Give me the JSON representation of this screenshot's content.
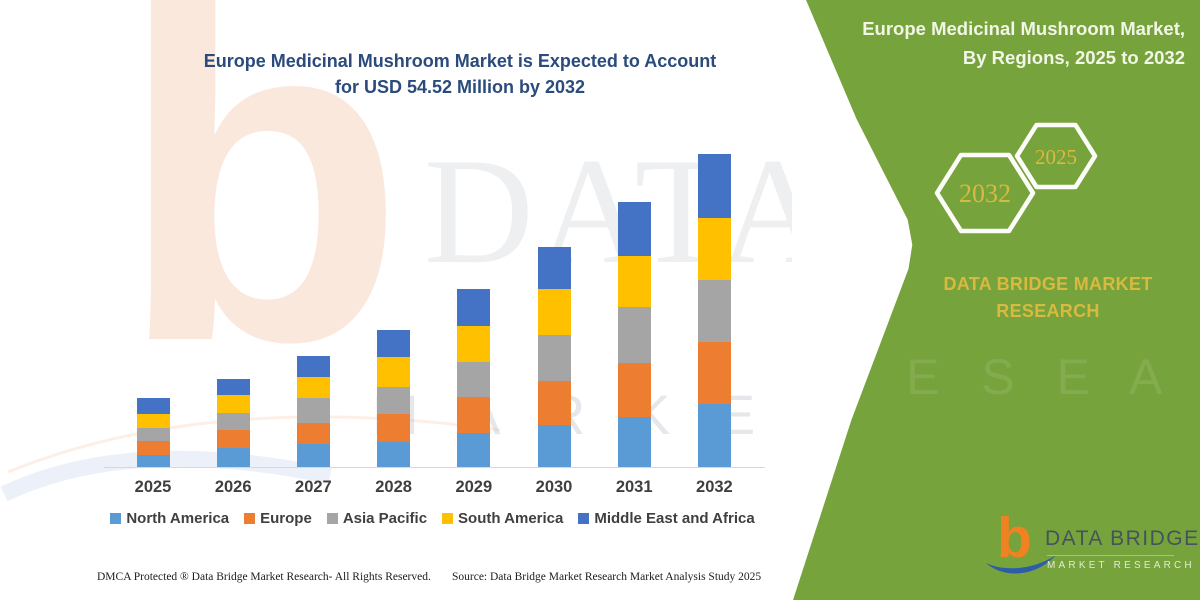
{
  "page": {
    "main_title_line1": "Europe Medicinal Mushroom Market is Expected to Account",
    "main_title_line2": "for USD 54.52 Million by 2032",
    "footer_left": "DMCA Protected ® Data Bridge Market Research-  All Rights Reserved.",
    "footer_source": "Source: Data Bridge Market Research  Market Analysis Study 2025"
  },
  "side_panel": {
    "title_line1": "Europe Medicinal Mushroom Market,",
    "title_line2": "By Regions, 2025 to 2032",
    "hexagon_large_label": "2032",
    "hexagon_small_label": "2025",
    "brand_line1": "DATA BRIDGE MARKET",
    "brand_line2": "RESEARCH",
    "background_color": "#77A33C",
    "gold_text_color": "#D9B93F"
  },
  "logo": {
    "mark_letter": "b",
    "name_text": "DATA BRIDGE",
    "subtitle_text": "MARKET RESEARCH",
    "orange": "#F08222",
    "blue": "#2D5DA8"
  },
  "watermark": {
    "letter": "b",
    "text_top": "DATA BRIDGE",
    "text_bottom": "M A R K E T  R E S E A R C H",
    "text_green": "R E S E A R C H"
  },
  "chart_data": {
    "type": "bar",
    "stacked": true,
    "title": "Europe Medicinal Mushroom Market is Expected to Account for USD 54.52 Million by 2032",
    "unit": "USD Million",
    "categories": [
      "2025",
      "2026",
      "2027",
      "2028",
      "2029",
      "2030",
      "2031",
      "2032"
    ],
    "series": [
      {
        "name": "North America",
        "color": "#5B9BD5",
        "values": [
          2.1,
          3.3,
          4.0,
          4.4,
          5.9,
          7.3,
          8.7,
          11.0
        ]
      },
      {
        "name": "Europe",
        "color": "#ED7D31",
        "values": [
          2.4,
          3.1,
          3.7,
          4.9,
          6.3,
          7.7,
          9.4,
          10.8
        ]
      },
      {
        "name": "Asia Pacific",
        "color": "#A5A5A5",
        "values": [
          2.3,
          3.1,
          4.4,
          4.7,
          6.1,
          8.0,
          9.8,
          10.8
        ]
      },
      {
        "name": "South America",
        "color": "#FFC000",
        "values": [
          2.4,
          3.0,
          3.5,
          5.1,
          6.3,
          8.0,
          8.9,
          10.8
        ]
      },
      {
        "name": "Middle East and Africa",
        "color": "#4472C4",
        "values": [
          2.8,
          2.8,
          3.8,
          4.7,
          6.4,
          7.3,
          9.4,
          11.12
        ]
      }
    ],
    "totals_estimated": [
      12.0,
      15.3,
      19.4,
      23.8,
      31.0,
      38.3,
      46.2,
      54.52
    ],
    "ylim": [
      0,
      55
    ],
    "grid": false,
    "y_axis_visible": false,
    "legend_position": "bottom"
  }
}
